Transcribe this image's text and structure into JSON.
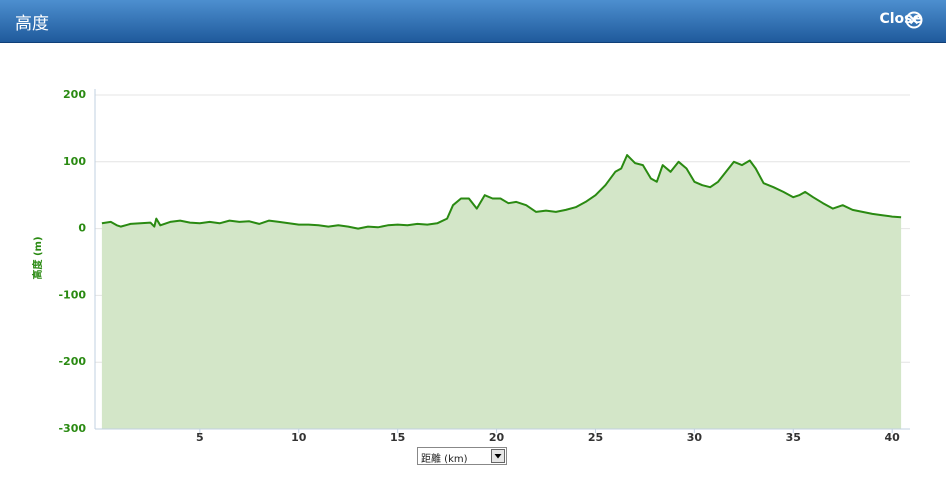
{
  "header": {
    "title": "高度",
    "close_label": "Close"
  },
  "chart_data": {
    "type": "area",
    "y_label": "高度 (m)",
    "x_label": "距離 (km)",
    "x": [
      0.05,
      0.5,
      0.8,
      1.0,
      1.5,
      2,
      2.5,
      2.7,
      2.8,
      3,
      3.5,
      4,
      4.5,
      5,
      5.5,
      6,
      6.5,
      7,
      7.5,
      8,
      8.5,
      9,
      9.5,
      10,
      10.5,
      11,
      11.5,
      12,
      12.5,
      13,
      13.5,
      14,
      14.5,
      15,
      15.5,
      16,
      16.5,
      17,
      17.5,
      17.8,
      18.2,
      18.6,
      19,
      19.4,
      19.8,
      20.2,
      20.6,
      21,
      21.5,
      22,
      22.5,
      23,
      23.5,
      24,
      24.5,
      25,
      25.5,
      26,
      26.3,
      26.6,
      27,
      27.4,
      27.8,
      28.1,
      28.4,
      28.8,
      29.2,
      29.6,
      30,
      30.4,
      30.8,
      31.2,
      31.6,
      32,
      32.4,
      32.8,
      33.1,
      33.5,
      34,
      34.5,
      35,
      35.3,
      35.6,
      36,
      36.5,
      37,
      37.5,
      38,
      38.5,
      39,
      39.5,
      40,
      40.45
    ],
    "values": [
      8,
      10,
      5,
      3,
      7,
      8,
      9,
      3,
      15,
      5,
      10,
      12,
      9,
      8,
      10,
      8,
      12,
      10,
      11,
      7,
      12,
      10,
      8,
      6,
      6,
      5,
      3,
      5,
      3,
      0,
      3,
      2,
      5,
      6,
      5,
      7,
      6,
      8,
      15,
      35,
      45,
      45,
      30,
      50,
      45,
      45,
      38,
      40,
      35,
      25,
      27,
      25,
      28,
      32,
      40,
      50,
      65,
      85,
      90,
      110,
      98,
      95,
      75,
      70,
      95,
      85,
      100,
      90,
      70,
      65,
      62,
      70,
      85,
      100,
      95,
      102,
      90,
      68,
      62,
      55,
      47,
      50,
      55,
      47,
      38,
      30,
      35,
      28,
      25,
      22,
      20,
      18,
      17
    ],
    "color": "#2a8a12",
    "fill_color": "#d3e6c8",
    "xlim": [
      -0.3,
      40.9
    ],
    "ylim": [
      -300,
      200
    ],
    "xticks": [
      5,
      10,
      15,
      20,
      25,
      30,
      35,
      40
    ],
    "yticks": [
      -300,
      -200,
      -100,
      0,
      100,
      200
    ],
    "grid": true
  }
}
